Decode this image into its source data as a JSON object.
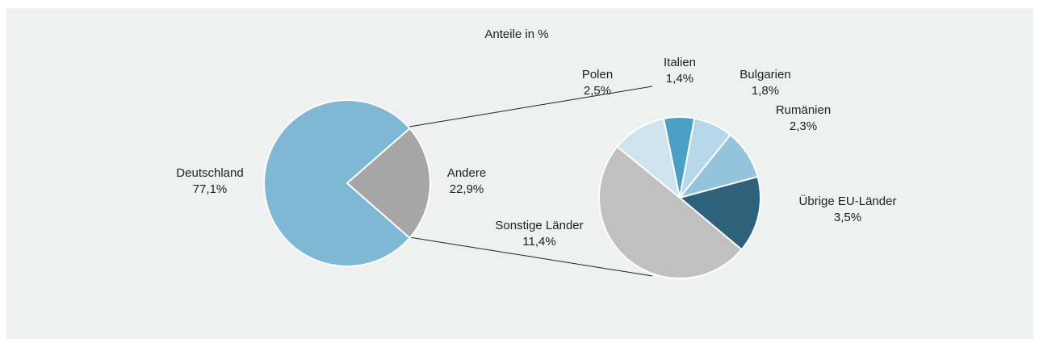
{
  "chart_data": [
    {
      "type": "pie",
      "title": "Anteile in %",
      "categories": [
        "Deutschland",
        "Andere"
      ],
      "values": [
        77.1,
        22.9
      ],
      "value_labels": [
        "77,1%",
        "22,9%"
      ],
      "colors": [
        "#7fb8d4",
        "#a6a6a6"
      ]
    },
    {
      "type": "pie",
      "categories": [
        "Polen",
        "Italien",
        "Bulgarien",
        "Rumänien",
        "Übrige EU-Länder",
        "Sonstige Länder"
      ],
      "values": [
        2.5,
        1.4,
        1.8,
        2.3,
        3.5,
        11.4
      ],
      "value_labels": [
        "2,5%",
        "1,4%",
        "1,8%",
        "2,3%",
        "3,5%",
        "11,4%"
      ],
      "colors": [
        "#cde3ee",
        "#4a9fc4",
        "#b7d8e8",
        "#93c4dc",
        "#2e627a",
        "#c0c0c0"
      ]
    }
  ]
}
